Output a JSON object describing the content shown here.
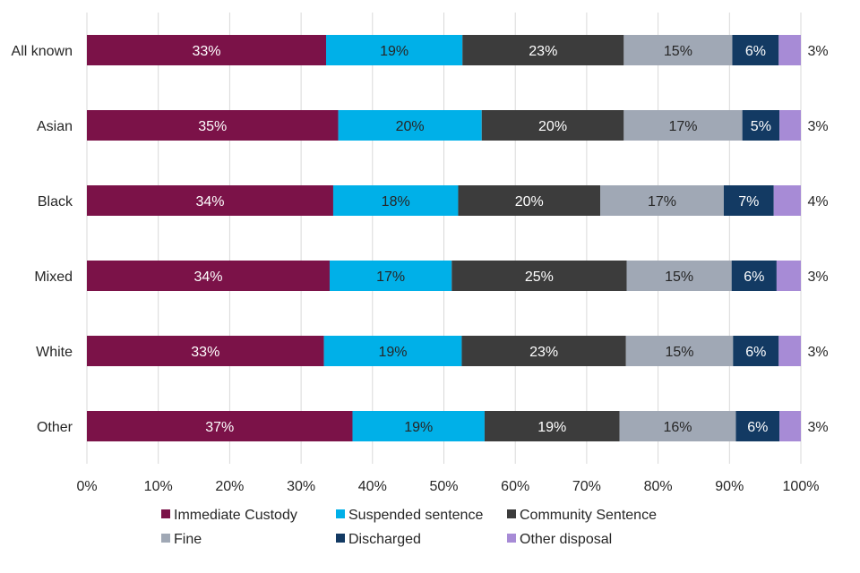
{
  "chart_data": {
    "type": "bar",
    "orientation": "horizontal",
    "stacked": true,
    "title": "",
    "xlabel": "",
    "ylabel": "",
    "xlim": [
      0,
      100
    ],
    "x_ticks": [
      "0%",
      "10%",
      "20%",
      "30%",
      "40%",
      "50%",
      "60%",
      "70%",
      "80%",
      "90%",
      "100%"
    ],
    "grid": "vertical",
    "legend_position": "bottom",
    "categories": [
      "All known",
      "Asian",
      "Black",
      "Mixed",
      "White",
      "Other"
    ],
    "series": [
      {
        "name": "Immediate Custody",
        "color": "#7B1248",
        "label_color": "#ffffff",
        "values": [
          33.5,
          35.2,
          34.5,
          34.0,
          33.2,
          37.2
        ],
        "labels": [
          "33%",
          "35%",
          "34%",
          "34%",
          "33%",
          "37%"
        ]
      },
      {
        "name": "Suspended sentence",
        "color": "#00B0E8",
        "label_color": "#262626",
        "values": [
          19.1,
          20.1,
          17.5,
          17.1,
          19.3,
          18.5
        ],
        "labels": [
          "19%",
          "20%",
          "18%",
          "17%",
          "19%",
          "19%"
        ]
      },
      {
        "name": "Community Sentence",
        "color": "#3C3C3C",
        "label_color": "#ffffff",
        "values": [
          22.6,
          19.9,
          19.9,
          24.5,
          23.0,
          18.9
        ],
        "labels": [
          "23%",
          "20%",
          "20%",
          "25%",
          "23%",
          "19%"
        ]
      },
      {
        "name": "Fine",
        "color": "#A0A8B5",
        "label_color": "#262626",
        "values": [
          15.2,
          16.6,
          17.3,
          14.7,
          15.0,
          16.3
        ],
        "labels": [
          "15%",
          "17%",
          "17%",
          "15%",
          "15%",
          "16%"
        ]
      },
      {
        "name": "Discharged",
        "color": "#133A63",
        "label_color": "#ffffff",
        "values": [
          6.5,
          5.2,
          7.0,
          6.3,
          6.4,
          6.1
        ],
        "labels": [
          "6%",
          "5%",
          "7%",
          "6%",
          "6%",
          "6%"
        ]
      },
      {
        "name": "Other disposal",
        "color": "#A78BD6",
        "label_color": "#262626",
        "label_outside": true,
        "values": [
          3.1,
          3.0,
          3.8,
          3.4,
          3.1,
          3.0
        ],
        "labels": [
          "3%",
          "3%",
          "4%",
          "3%",
          "3%",
          "3%"
        ]
      }
    ]
  }
}
